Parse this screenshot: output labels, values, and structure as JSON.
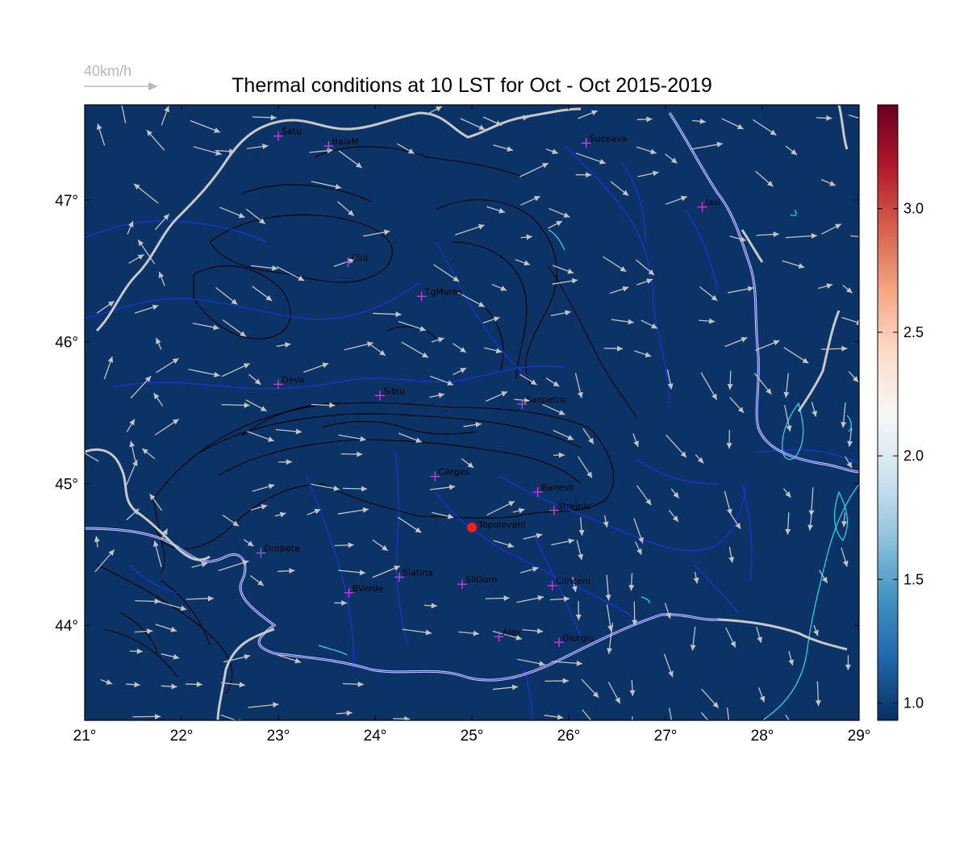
{
  "title": "Thermal conditions at 10 LST for Oct - Oct  2015-2019",
  "wind_reference": {
    "label": "40km/h"
  },
  "lon_ticks": [
    "21°",
    "22°",
    "23°",
    "24°",
    "25°",
    "26°",
    "27°",
    "28°",
    "29°"
  ],
  "lat_ticks": [
    "44°",
    "45°",
    "46°",
    "47°"
  ],
  "lon_values": [
    21,
    22,
    23,
    24,
    25,
    26,
    27,
    28,
    29
  ],
  "lat_values": [
    44,
    45,
    46,
    47
  ],
  "extent": {
    "lon_min": 21,
    "lon_max": 29,
    "lat_min": 43.33,
    "lat_max": 47.67
  },
  "colorbar": {
    "ticks": [
      "1.0",
      "1.5",
      "2.0",
      "2.5",
      "3.0"
    ],
    "values": [
      1.0,
      1.5,
      2.0,
      2.5,
      3.0
    ],
    "min": 0.93,
    "max": 3.42,
    "colors": [
      "#053061",
      "#2166ac",
      "#4393c3",
      "#92c5de",
      "#d1e5f0",
      "#f7f7f7",
      "#fddbc7",
      "#f4a582",
      "#d6604d",
      "#b2182b",
      "#67001f"
    ]
  },
  "map_fill_color": "#0b3366",
  "stations": [
    {
      "name": "Satu",
      "lon": 23.0,
      "lat": 47.45
    },
    {
      "name": "BaiaM",
      "lon": 23.52,
      "lat": 47.38
    },
    {
      "name": "Suceava",
      "lon": 26.18,
      "lat": 47.4
    },
    {
      "name": "Iasi",
      "lon": 27.38,
      "lat": 46.95
    },
    {
      "name": "Cluj",
      "lon": 23.72,
      "lat": 46.56
    },
    {
      "name": "TgMures",
      "lon": 24.48,
      "lat": 46.32
    },
    {
      "name": "Deva",
      "lon": 23.0,
      "lat": 45.7
    },
    {
      "name": "Sibiu",
      "lon": 24.05,
      "lat": 45.62
    },
    {
      "name": "Sanpetru",
      "lon": 25.52,
      "lat": 45.56
    },
    {
      "name": "CArges",
      "lon": 24.62,
      "lat": 45.05
    },
    {
      "name": "Banesti",
      "lon": 25.68,
      "lat": 44.94
    },
    {
      "name": "Strejnic",
      "lon": 25.85,
      "lat": 44.81
    },
    {
      "name": "Drobeta",
      "lon": 22.82,
      "lat": 44.51
    },
    {
      "name": "Slatina",
      "lon": 24.25,
      "lat": 44.34
    },
    {
      "name": "SilGum",
      "lon": 24.9,
      "lat": 44.29
    },
    {
      "name": "Clinceni",
      "lon": 25.83,
      "lat": 44.28
    },
    {
      "name": "BVerde",
      "lon": 23.73,
      "lat": 44.23
    },
    {
      "name": "Alex",
      "lon": 25.28,
      "lat": 43.92
    },
    {
      "name": "Giurgiu",
      "lon": 25.9,
      "lat": 43.88
    }
  ],
  "highlight": {
    "name": "Topoloveni",
    "lon": 25.0,
    "lat": 44.69
  }
}
